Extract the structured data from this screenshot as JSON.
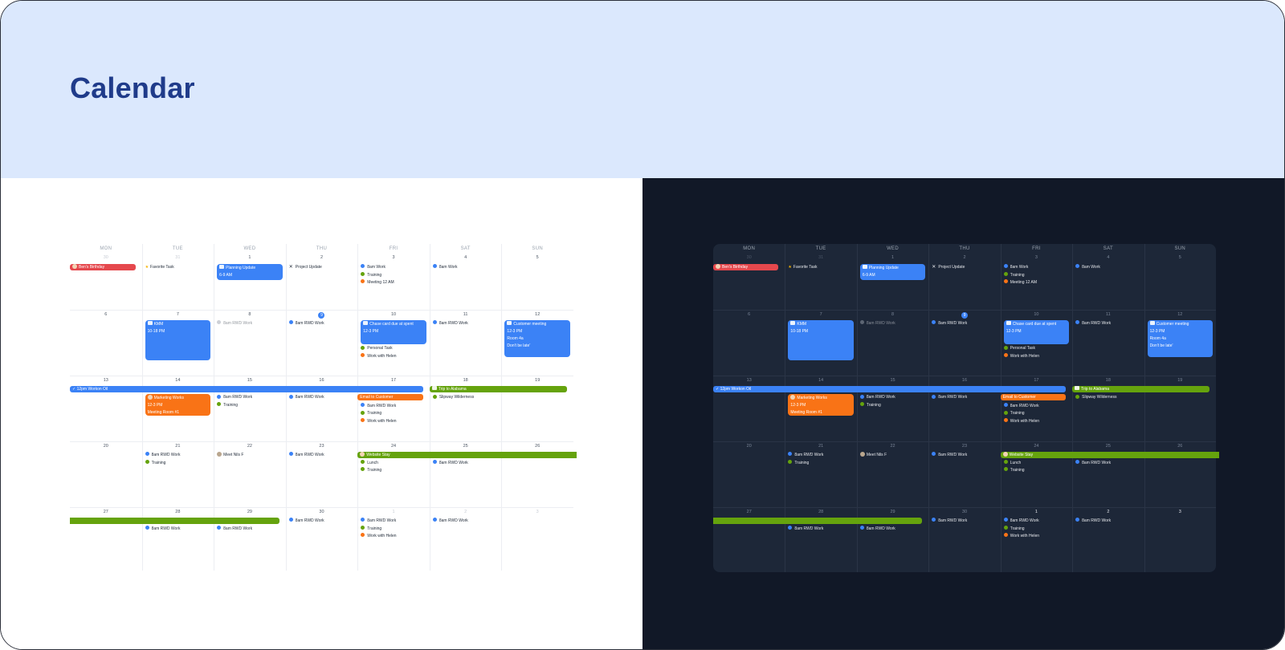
{
  "page": {
    "title": "Calendar"
  },
  "calendar": {
    "weekdays": [
      "MON",
      "TUE",
      "WED",
      "THU",
      "FRI",
      "SAT",
      "SUN"
    ],
    "weeks": [
      [
        "30",
        "31",
        "1",
        "2",
        "3",
        "4",
        "5"
      ],
      [
        "6",
        "7",
        "8",
        "9",
        "10",
        "11",
        "12"
      ],
      [
        "13",
        "14",
        "15",
        "16",
        "17",
        "18",
        "19"
      ],
      [
        "20",
        "21",
        "22",
        "23",
        "24",
        "25",
        "26"
      ],
      [
        "27",
        "28",
        "29",
        "30",
        "1",
        "2",
        "3"
      ]
    ],
    "today": "9",
    "colors": {
      "blue": "#3b82f6",
      "red": "#e5484d",
      "orange": "#f97316",
      "green": "#65a30d",
      "gray": "#9ca3af"
    },
    "events": {
      "birthday": "Ben's Birthday",
      "favorite_task": "Favorite Task",
      "planning_title": "Planning Update",
      "planning_time": "6-9 AM",
      "project_update": "Project Update",
      "work_8am": "8am Work",
      "training": "Training",
      "meeting_12": "Meeting 12 AM",
      "rwd": "8am RWD Work",
      "kmm_title": "KMM",
      "kmm_time": "10-18 PM",
      "chase_title": "Chase card due at spent",
      "chase_time": "12-3 PM",
      "personal_task": "Personal Task",
      "work_helen": "Work with Helen",
      "customer_title": "Customer meeting",
      "customer_time": "12-3 PM",
      "customer_room": "Room 4a",
      "customer_note": "Don't be late'",
      "worksop": "12pm Workon Oil",
      "trip": "Trip to Alabama",
      "marketing_title": "Marketing Works",
      "marketing_time": "12-3 PM",
      "marketing_room": "Meeting Room #1",
      "email": "Email to Customer",
      "slipway": "Slipway Wilderness",
      "meet": "Meet Nils F",
      "website": "Website Stay",
      "lunch": "Lunch"
    }
  }
}
